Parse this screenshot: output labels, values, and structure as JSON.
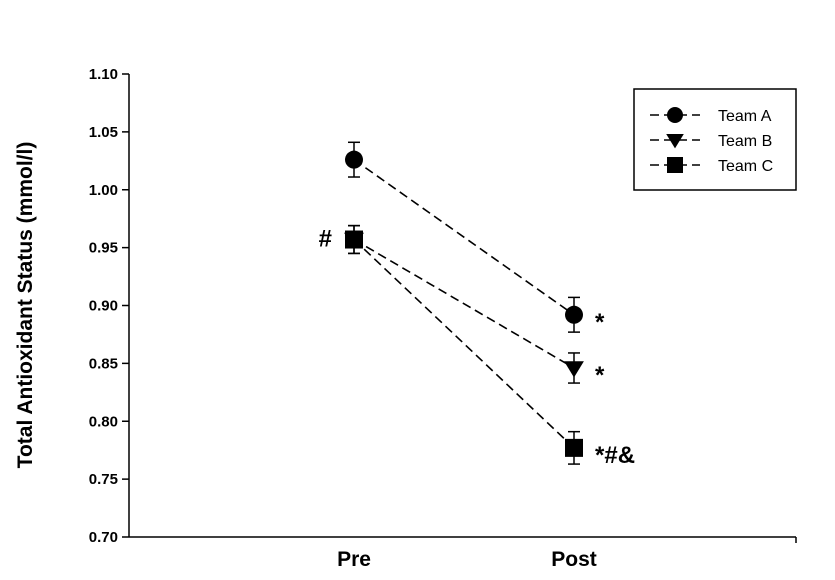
{
  "chart_data": {
    "type": "line",
    "title": "",
    "xlabel": "",
    "ylabel": "Total Antioxidant Status (mmol/l)",
    "categories": [
      "Pre",
      "Post"
    ],
    "ylim": [
      0.7,
      1.1
    ],
    "yticks": [
      "0.70",
      "0.75",
      "0.80",
      "0.85",
      "0.90",
      "0.95",
      "1.00",
      "1.05",
      "1.10"
    ],
    "grid": false,
    "legend_position": "top-right",
    "series": [
      {
        "name": "Team A",
        "marker": "circle",
        "values": [
          1.026,
          0.892
        ],
        "errors": [
          0.015,
          0.015
        ]
      },
      {
        "name": "Team B",
        "marker": "triangle-down",
        "values": [
          0.957,
          0.846
        ],
        "errors": [
          0.012,
          0.013
        ]
      },
      {
        "name": "Team C",
        "marker": "square",
        "values": [
          0.957,
          0.777
        ],
        "errors": [
          0.012,
          0.014
        ]
      }
    ],
    "annotations": [
      {
        "text": "#",
        "category": "Pre",
        "series": "Team C"
      },
      {
        "text": "*",
        "category": "Post",
        "series": "Team A"
      },
      {
        "text": "*",
        "category": "Post",
        "series": "Team B"
      },
      {
        "text": "*#&",
        "category": "Post",
        "series": "Team C"
      }
    ],
    "colors": {
      "line": "#000000",
      "marker": "#000000"
    }
  }
}
